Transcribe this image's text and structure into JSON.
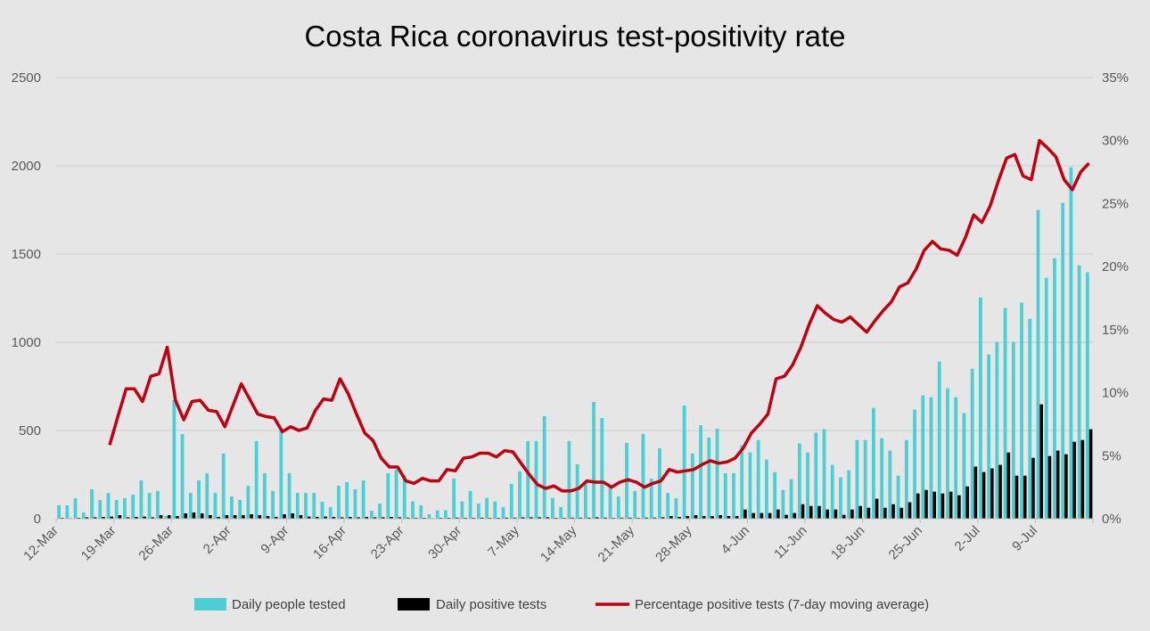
{
  "chart_data": {
    "type": "bar+line",
    "title": "Costa Rica coronavirus test-positivity rate",
    "xlabel": "",
    "ylabel": "",
    "y_left": {
      "lim": [
        0,
        2500
      ],
      "ticks": [
        0,
        500,
        1000,
        1500,
        2000,
        2500
      ],
      "tick_labels": [
        "0",
        "500",
        "1000",
        "1500",
        "2000",
        "2500"
      ]
    },
    "y_right": {
      "lim": [
        0,
        35
      ],
      "ticks": [
        0,
        5,
        10,
        15,
        20,
        25,
        30,
        35
      ],
      "tick_labels": [
        "0%",
        "5%",
        "10%",
        "15%",
        "20%",
        "25%",
        "30%",
        "35%"
      ]
    },
    "grid": true,
    "legend_position": "bottom",
    "x_tick_labels": [
      "12-Mar",
      "19-Mar",
      "26-Mar",
      "2-Apr",
      "9-Apr",
      "16-Apr",
      "23-Apr",
      "30-Apr",
      "7-May",
      "14-May",
      "21-May",
      "28-May",
      "4-Jun",
      "11-Jun",
      "18-Jun",
      "25-Jun",
      "2-Jul",
      "9-Jul"
    ],
    "categories": [
      "12-Mar",
      "13-Mar",
      "14-Mar",
      "15-Mar",
      "16-Mar",
      "17-Mar",
      "18-Mar",
      "19-Mar",
      "20-Mar",
      "21-Mar",
      "22-Mar",
      "23-Mar",
      "24-Mar",
      "25-Mar",
      "26-Mar",
      "27-Mar",
      "28-Mar",
      "29-Mar",
      "30-Mar",
      "31-Mar",
      "1-Apr",
      "2-Apr",
      "3-Apr",
      "4-Apr",
      "5-Apr",
      "6-Apr",
      "7-Apr",
      "8-Apr",
      "9-Apr",
      "10-Apr",
      "11-Apr",
      "12-Apr",
      "13-Apr",
      "14-Apr",
      "15-Apr",
      "16-Apr",
      "17-Apr",
      "18-Apr",
      "19-Apr",
      "20-Apr",
      "21-Apr",
      "22-Apr",
      "23-Apr",
      "24-Apr",
      "25-Apr",
      "26-Apr",
      "27-Apr",
      "28-Apr",
      "29-Apr",
      "30-Apr",
      "1-May",
      "2-May",
      "3-May",
      "4-May",
      "5-May",
      "6-May",
      "7-May",
      "8-May",
      "9-May",
      "10-May",
      "11-May",
      "12-May",
      "13-May",
      "14-May",
      "15-May",
      "16-May",
      "17-May",
      "18-May",
      "19-May",
      "20-May",
      "21-May",
      "22-May",
      "23-May",
      "24-May",
      "25-May",
      "26-May",
      "27-May",
      "28-May",
      "29-May",
      "30-May",
      "31-May",
      "1-Jun",
      "2-Jun",
      "3-Jun",
      "4-Jun",
      "5-Jun",
      "6-Jun",
      "7-Jun",
      "8-Jun",
      "9-Jun",
      "10-Jun",
      "11-Jun",
      "12-Jun",
      "13-Jun",
      "14-Jun",
      "15-Jun",
      "16-Jun",
      "17-Jun",
      "18-Jun",
      "19-Jun",
      "20-Jun",
      "21-Jun",
      "22-Jun",
      "23-Jun",
      "24-Jun",
      "25-Jun",
      "26-Jun",
      "27-Jun",
      "28-Jun",
      "29-Jun",
      "30-Jun",
      "1-Jul",
      "2-Jul",
      "3-Jul",
      "4-Jul",
      "5-Jul",
      "6-Jul",
      "7-Jul",
      "8-Jul",
      "9-Jul",
      "10-Jul",
      "11-Jul",
      "12-Jul",
      "13-Jul",
      "14-Jul",
      "15-Jul"
    ],
    "series": [
      {
        "name": "Daily people tested",
        "type": "bar",
        "axis": "left",
        "color": "#4acfd4",
        "values": [
          76,
          76,
          116,
          35,
          167,
          106,
          146,
          106,
          116,
          136,
          217,
          146,
          157,
          15,
          672,
          480,
          146,
          217,
          258,
          146,
          369,
          126,
          106,
          187,
          440,
          258,
          157,
          500,
          258,
          146,
          146,
          146,
          96,
          66,
          187,
          207,
          167,
          217,
          45,
          86,
          258,
          278,
          246,
          98,
          76,
          25,
          47,
          47,
          227,
          98,
          157,
          86,
          118,
          98,
          66,
          197,
          268,
          440,
          440,
          581,
          118,
          66,
          440,
          308,
          202,
          662,
          571,
          177,
          126,
          429,
          157,
          480,
          227,
          399,
          146,
          116,
          641,
          369,
          530,
          460,
          510,
          258,
          258,
          416,
          375,
          446,
          335,
          264,
          163,
          224,
          426,
          375,
          487,
          507,
          305,
          234,
          274,
          446,
          446,
          628,
          456,
          386,
          244,
          446,
          618,
          699,
          689,
          891,
          739,
          689,
          598,
          850,
          1254,
          931,
          1002,
          1194,
          1002,
          1224,
          1133,
          1749,
          1365,
          1476,
          1790,
          1992,
          1436,
          1396
        ]
      },
      {
        "name": "Daily positive tests",
        "type": "bar",
        "axis": "left",
        "color": "#000000",
        "values": [
          5,
          3,
          5,
          8,
          8,
          10,
          12,
          20,
          8,
          10,
          12,
          8,
          20,
          20,
          15,
          30,
          35,
          30,
          20,
          10,
          20,
          20,
          20,
          25,
          20,
          15,
          10,
          25,
          30,
          20,
          12,
          10,
          12,
          10,
          8,
          10,
          8,
          10,
          8,
          8,
          10,
          8,
          6,
          5,
          5,
          3,
          5,
          5,
          6,
          5,
          5,
          6,
          5,
          5,
          6,
          6,
          8,
          8,
          8,
          8,
          5,
          5,
          6,
          6,
          6,
          8,
          6,
          5,
          6,
          6,
          5,
          6,
          6,
          8,
          15,
          10,
          15,
          20,
          15,
          15,
          20,
          15,
          15,
          52,
          32,
          32,
          32,
          52,
          22,
          32,
          82,
          72,
          72,
          52,
          52,
          22,
          52,
          72,
          62,
          113,
          62,
          82,
          62,
          93,
          143,
          163,
          153,
          143,
          153,
          133,
          183,
          295,
          264,
          285,
          305,
          375,
          244,
          244,
          345,
          648,
          355,
          386,
          365,
          436,
          446,
          507
        ]
      },
      {
        "name": "Percentage positive tests (7-day moving average)",
        "type": "line",
        "axis": "right",
        "color": "#c00010",
        "values": [
          null,
          null,
          null,
          null,
          null,
          null,
          5.85,
          8.1,
          10.3,
          10.3,
          9.3,
          11.3,
          11.5,
          13.6,
          9.4,
          7.85,
          9.3,
          9.4,
          8.6,
          8.5,
          7.3,
          9.0,
          10.7,
          9.5,
          8.3,
          8.1,
          8.0,
          6.9,
          7.3,
          7.0,
          7.2,
          8.6,
          9.5,
          9.4,
          11.1,
          9.9,
          8.3,
          6.8,
          6.2,
          4.8,
          4.1,
          4.1,
          3.0,
          2.8,
          3.2,
          3.0,
          3.0,
          3.9,
          3.8,
          4.8,
          4.9,
          5.2,
          5.2,
          4.9,
          5.4,
          5.3,
          4.4,
          3.5,
          2.7,
          2.4,
          2.6,
          2.2,
          2.2,
          2.4,
          3.0,
          2.9,
          2.9,
          2.5,
          2.9,
          3.1,
          2.9,
          2.5,
          2.8,
          3.0,
          3.9,
          3.7,
          3.8,
          3.9,
          4.3,
          4.6,
          4.4,
          4.5,
          4.8,
          5.6,
          6.8,
          7.5,
          8.3,
          11.1,
          11.3,
          12.2,
          13.6,
          15.4,
          16.9,
          16.3,
          15.8,
          15.6,
          16.0,
          15.4,
          14.8,
          15.7,
          16.5,
          17.2,
          18.4,
          18.7,
          19.8,
          21.3,
          22.0,
          21.4,
          21.3,
          20.9,
          22.3,
          24.1,
          23.5,
          24.8,
          26.8,
          28.6,
          28.9,
          27.2,
          26.9,
          30.0,
          29.4,
          28.7,
          26.9,
          26.1,
          27.5,
          28.2
        ]
      }
    ]
  }
}
